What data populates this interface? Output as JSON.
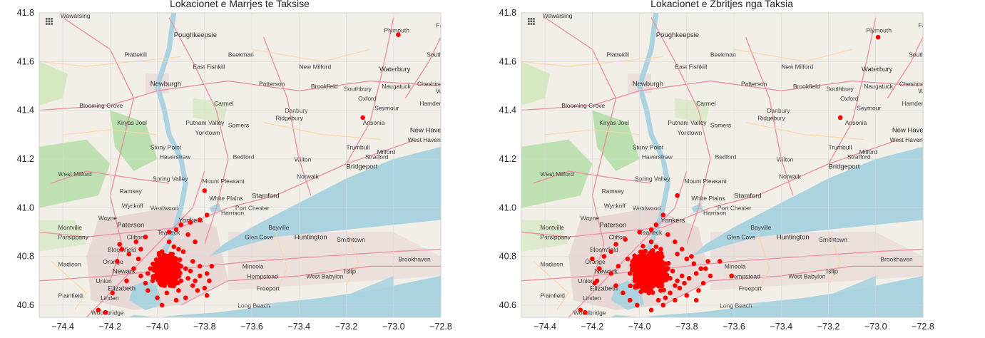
{
  "chart_data": [
    {
      "type": "scatter",
      "title": "Lokacionet e Marrjes te Taksise",
      "xlabel": "",
      "ylabel": "",
      "xlim": [
        -74.5,
        -72.8
      ],
      "ylim": [
        40.55,
        41.8
      ],
      "xticks": [
        "−74.4",
        "−74.2",
        "−74.0",
        "−73.8",
        "−73.6",
        "−73.4",
        "−73.2",
        "−73.0",
        "−72.8"
      ],
      "yticks": [
        "40.6",
        "40.8",
        "41.0",
        "41.2",
        "41.4",
        "41.6",
        "41.8"
      ],
      "marker_color": "#ff0000",
      "grid": true,
      "background": "OpenStreetMap basemap of New York metro area",
      "points": [
        [
          -72.98,
          41.71
        ],
        [
          -73.13,
          41.37
        ],
        [
          -73.8,
          41.07
        ],
        [
          -73.79,
          40.97
        ],
        [
          -73.82,
          40.95
        ],
        [
          -73.86,
          40.94
        ],
        [
          -73.9,
          40.93
        ],
        [
          -73.92,
          40.91
        ],
        [
          -73.95,
          40.9
        ],
        [
          -74.05,
          40.88
        ],
        [
          -74.09,
          40.86
        ],
        [
          -74.07,
          40.83
        ],
        [
          -74.16,
          40.85
        ],
        [
          -74.15,
          40.83
        ],
        [
          -74.12,
          40.81
        ],
        [
          -74.17,
          40.78
        ],
        [
          -74.1,
          40.75
        ],
        [
          -74.07,
          40.72
        ],
        [
          -74.05,
          40.69
        ],
        [
          -74.04,
          40.66
        ],
        [
          -74.0,
          40.63
        ],
        [
          -73.98,
          40.6
        ],
        [
          -73.92,
          40.62
        ],
        [
          -73.88,
          40.63
        ],
        [
          -73.83,
          40.66
        ],
        [
          -73.79,
          40.64
        ],
        [
          -73.8,
          40.67
        ],
        [
          -73.78,
          40.7
        ],
        [
          -73.79,
          40.73
        ],
        [
          -73.82,
          40.76
        ],
        [
          -73.85,
          40.78
        ],
        [
          -73.89,
          40.82
        ],
        [
          -73.84,
          40.86
        ],
        [
          -73.87,
          40.89
        ],
        [
          -73.77,
          40.76
        ],
        [
          -74.25,
          40.58
        ],
        [
          -74.22,
          40.57
        ],
        [
          -74.19,
          40.65
        ],
        [
          -74.13,
          40.7
        ],
        [
          -74.08,
          40.79
        ],
        [
          -73.95,
          40.86
        ],
        [
          -73.93,
          40.84
        ],
        [
          -73.91,
          40.83
        ],
        [
          -73.98,
          40.82
        ],
        [
          -73.96,
          40.8
        ],
        [
          -73.94,
          40.79
        ],
        [
          -73.99,
          40.77
        ],
        [
          -73.97,
          40.76
        ],
        [
          -74.0,
          40.74
        ],
        [
          -73.98,
          40.73
        ],
        [
          -74.01,
          40.72
        ],
        [
          -73.99,
          40.71
        ],
        [
          -73.95,
          40.71
        ],
        [
          -73.93,
          40.73
        ],
        [
          -73.92,
          40.75
        ],
        [
          -73.9,
          40.76
        ],
        [
          -73.88,
          40.75
        ],
        [
          -73.86,
          40.74
        ],
        [
          -73.9,
          40.7
        ],
        [
          -73.94,
          40.68
        ],
        [
          -73.97,
          40.68
        ],
        [
          -73.99,
          40.69
        ],
        [
          -74.02,
          40.7
        ],
        [
          -73.96,
          40.65
        ],
        [
          -73.91,
          40.66
        ],
        [
          -73.87,
          40.71
        ],
        [
          -73.84,
          40.7
        ],
        [
          -73.82,
          40.72
        ],
        [
          -73.85,
          40.68
        ],
        [
          -73.93,
          40.77
        ],
        [
          -74.03,
          40.75
        ],
        [
          -74.04,
          40.73
        ],
        [
          -73.97,
          40.74
        ],
        [
          -73.95,
          40.75
        ],
        [
          -73.98,
          40.78
        ],
        [
          -73.96,
          40.77
        ],
        [
          -73.97,
          40.72
        ],
        [
          -73.95,
          40.73
        ],
        [
          -74.0,
          40.76
        ],
        [
          -73.99,
          40.75
        ]
      ]
    },
    {
      "type": "scatter",
      "title": "Lokacionet e Zbritjes nga Taksia",
      "xlabel": "",
      "ylabel": "",
      "xlim": [
        -74.5,
        -72.8
      ],
      "ylim": [
        40.55,
        41.8
      ],
      "xticks": [
        "−74.4",
        "−74.2",
        "−74.0",
        "−73.8",
        "−73.6",
        "−73.4",
        "−73.2",
        "−73.0",
        "−72.8"
      ],
      "yticks": [
        "40.6",
        "40.8",
        "41.0",
        "41.2",
        "41.4",
        "41.6",
        "41.8"
      ],
      "marker_color": "#ff0000",
      "grid": true,
      "background": "OpenStreetMap basemap of New York metro area",
      "points": [
        [
          -72.99,
          41.7
        ],
        [
          -73.15,
          41.37
        ],
        [
          -73.84,
          41.05
        ],
        [
          -73.9,
          40.97
        ],
        [
          -73.93,
          40.93
        ],
        [
          -73.95,
          40.91
        ],
        [
          -74.0,
          40.9
        ],
        [
          -74.06,
          40.87
        ],
        [
          -74.1,
          40.85
        ],
        [
          -74.12,
          40.82
        ],
        [
          -74.15,
          40.8
        ],
        [
          -74.2,
          40.79
        ],
        [
          -74.17,
          40.75
        ],
        [
          -74.12,
          40.73
        ],
        [
          -74.18,
          40.7
        ],
        [
          -74.19,
          40.69
        ],
        [
          -74.1,
          40.68
        ],
        [
          -74.07,
          40.65
        ],
        [
          -74.04,
          40.62
        ],
        [
          -74.01,
          40.6
        ],
        [
          -73.95,
          40.58
        ],
        [
          -73.9,
          40.6
        ],
        [
          -73.85,
          40.62
        ],
        [
          -73.8,
          40.64
        ],
        [
          -73.75,
          40.66
        ],
        [
          -73.73,
          40.69
        ],
        [
          -73.7,
          40.72
        ],
        [
          -73.72,
          40.75
        ],
        [
          -73.71,
          40.78
        ],
        [
          -73.66,
          40.78
        ],
        [
          -73.61,
          40.72
        ],
        [
          -73.78,
          40.8
        ],
        [
          -73.82,
          40.83
        ],
        [
          -73.85,
          40.86
        ],
        [
          -73.88,
          40.89
        ],
        [
          -74.25,
          40.58
        ],
        [
          -74.23,
          40.57
        ],
        [
          -74.09,
          40.76
        ],
        [
          -74.05,
          40.79
        ],
        [
          -73.76,
          40.62
        ],
        [
          -73.95,
          40.86
        ],
        [
          -73.93,
          40.84
        ],
        [
          -73.91,
          40.83
        ],
        [
          -73.98,
          40.82
        ],
        [
          -73.96,
          40.8
        ],
        [
          -73.94,
          40.79
        ],
        [
          -73.99,
          40.77
        ],
        [
          -73.97,
          40.76
        ],
        [
          -74.0,
          40.74
        ],
        [
          -73.98,
          40.73
        ],
        [
          -74.01,
          40.72
        ],
        [
          -73.99,
          40.71
        ],
        [
          -73.95,
          40.71
        ],
        [
          -73.93,
          40.73
        ],
        [
          -73.92,
          40.75
        ],
        [
          -73.9,
          40.76
        ],
        [
          -73.88,
          40.75
        ],
        [
          -73.86,
          40.74
        ],
        [
          -73.9,
          40.7
        ],
        [
          -73.94,
          40.68
        ],
        [
          -73.97,
          40.68
        ],
        [
          -73.99,
          40.69
        ],
        [
          -74.02,
          40.7
        ],
        [
          -73.96,
          40.65
        ],
        [
          -73.91,
          40.66
        ],
        [
          -73.87,
          40.71
        ],
        [
          -73.84,
          40.7
        ],
        [
          -73.82,
          40.72
        ],
        [
          -73.85,
          40.68
        ],
        [
          -73.93,
          40.77
        ],
        [
          -74.03,
          40.75
        ],
        [
          -74.04,
          40.73
        ],
        [
          -73.97,
          40.74
        ],
        [
          -73.95,
          40.75
        ],
        [
          -73.98,
          40.78
        ],
        [
          -73.96,
          40.77
        ],
        [
          -73.97,
          40.72
        ],
        [
          -73.95,
          40.73
        ],
        [
          -74.0,
          40.76
        ],
        [
          -73.92,
          40.62
        ],
        [
          -73.89,
          40.63
        ],
        [
          -73.87,
          40.65
        ],
        [
          -73.83,
          40.67
        ],
        [
          -73.81,
          40.69
        ],
        [
          -73.79,
          40.71
        ],
        [
          -73.76,
          40.73
        ],
        [
          -73.74,
          40.75
        ],
        [
          -73.77,
          40.77
        ],
        [
          -73.8,
          40.79
        ],
        [
          -73.84,
          40.81
        ]
      ]
    }
  ],
  "map_labels": [
    "Wawarsing",
    "Poughkeepsie",
    "Plattekill",
    "Beekman",
    "East Fishkill",
    "New Milford",
    "Waterbury",
    "Newburgh",
    "Patterson",
    "Brookfield",
    "Southbury",
    "Naugatuck",
    "Cheshire",
    "Carmel",
    "Oxford",
    "Blooming Grove",
    "Danbury",
    "Seymour",
    "Ridgebury",
    "Putnam Valley",
    "Somers",
    "Ansonia",
    "New Haven",
    "Kiryas Joel",
    "Yorktown",
    "Stony Point",
    "Haverstraw",
    "Bedford",
    "Wilton",
    "Trumbull",
    "Milford",
    "Bridgeport",
    "West Milford",
    "Spring Valley",
    "Norwalk",
    "Mount Pleasant",
    "Ramsey",
    "White Plains",
    "Stamford",
    "Wyckoff",
    "Port Chester",
    "Westwood",
    "Harrison",
    "Yonkers",
    "Wayne",
    "Paterson",
    "Teaneck",
    "Bayville",
    "Montville",
    "Clifton",
    "Glen Cove",
    "Huntington",
    "Smithtown",
    "Parsippany",
    "Bloomfield",
    "Brookhaven",
    "Madison",
    "Orange",
    "Newark",
    "Mineola",
    "Hempstead",
    "Union",
    "West Babylon",
    "Islip",
    "Elizabeth",
    "Freeport",
    "Plainfield",
    "Linden",
    "Long Beach",
    "Woodbridge",
    "Plymouth",
    "Farmington",
    "Southington",
    "Wallingford",
    "Hamden",
    "West Haven",
    "Stratford"
  ],
  "colors": {
    "water": "#aad3df",
    "land": "#f2efe9",
    "park": "#cde6b8",
    "forest": "#addb9f",
    "urban": "#e2c7c7",
    "road_major": "#e892a2",
    "road_secondary": "#fcd6a4",
    "marker": "#ff0000",
    "tick_text": "#262626",
    "grid": "#d9d9d9"
  }
}
